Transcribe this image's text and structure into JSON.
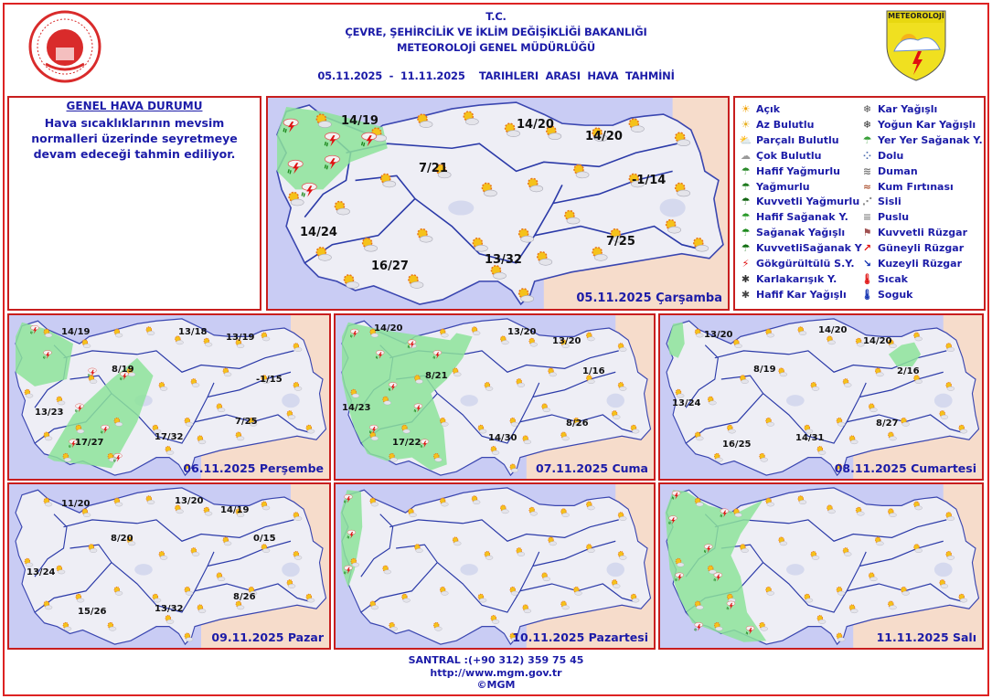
{
  "header": {
    "line1": "T.C.",
    "line2": "ÇEVRE, ŞEHİRCİLİK VE İKLİM DEĞİŞİKLİĞİ BAKANLIĞI",
    "line3": "METEOROLOJİ  GENEL  MÜDÜRLÜĞÜ",
    "period": "05.11.2025  -  11.11.2025    TARIHLERI  ARASI  HAVA  TAHMİNİ",
    "right_logo_text": "METEOROLOJİ"
  },
  "genel": {
    "title": "GENEL HAVA DURUMU",
    "text": "Hava sıcaklıklarının mevsim normalleri üzerinde seyretmeye devam edeceği tahmin ediliyor."
  },
  "legend": [
    {
      "label": "Açık",
      "icon": "sun-icon"
    },
    {
      "label": "Az Bulutlu",
      "icon": "mostly-sunny-icon"
    },
    {
      "label": "Parçalı Bulutlu",
      "icon": "partly-cloudy-icon"
    },
    {
      "label": "Çok Bulutlu",
      "icon": "cloudy-icon"
    },
    {
      "label": "Hafif Yağmurlu",
      "icon": "light-rain-icon"
    },
    {
      "label": "Yağmurlu",
      "icon": "rain-icon"
    },
    {
      "label": "Kuvvetli Yağmurlu",
      "icon": "heavy-rain-icon"
    },
    {
      "label": "Hafif Sağanak Y.",
      "icon": "light-shower-icon"
    },
    {
      "label": "Sağanak Yağışlı",
      "icon": "shower-icon"
    },
    {
      "label": "KuvvetliSağanak Y",
      "icon": "heavy-shower-icon"
    },
    {
      "label": "Gökgürültülü S.Y.",
      "icon": "thunderstorm-icon"
    },
    {
      "label": "Karlakarışık Y.",
      "icon": "sleet-icon"
    },
    {
      "label": "Hafif Kar Yağışlı",
      "icon": "light-snow-icon"
    },
    {
      "label": "Kar Yağışlı",
      "icon": "snow-icon"
    },
    {
      "label": "Yoğun Kar Yağışlı",
      "icon": "heavy-snow-icon"
    },
    {
      "label": "Yer Yer Sağanak Y.",
      "icon": "scattered-shower-icon"
    },
    {
      "label": "Dolu",
      "icon": "hail-icon"
    },
    {
      "label": "Duman",
      "icon": "smoke-icon"
    },
    {
      "label": "Kum Fırtınası",
      "icon": "sandstorm-icon"
    },
    {
      "label": "Sisli",
      "icon": "fog-icon"
    },
    {
      "label": "Puslu",
      "icon": "haze-icon"
    },
    {
      "label": "Kuvvetli Rüzgar",
      "icon": "strong-wind-icon"
    },
    {
      "label": "Güneyli Rüzgar",
      "icon": "south-wind-arrow-icon"
    },
    {
      "label": "Kuzeyli Rüzgar",
      "icon": "north-wind-arrow-icon"
    },
    {
      "label": "Sıcak",
      "icon": "hot-thermometer-icon"
    },
    {
      "label": "Soguk",
      "icon": "cold-thermometer-icon"
    }
  ],
  "maps": [
    {
      "date": "05.11.2025 Çarşamba",
      "temps": [
        "14/19",
        "14/20",
        "14/20",
        "7/21",
        "-1/14",
        "14/24",
        "16/27",
        "13/32",
        "7/25"
      ]
    },
    {
      "date": "06.11.2025 Perşembe",
      "temps": [
        "14/19",
        "13/18",
        "13/19",
        "8/19",
        "-1/15",
        "13/23",
        "7/25",
        "17/32",
        "17/27"
      ]
    },
    {
      "date": "07.11.2025 Cuma",
      "temps": [
        "14/20",
        "13/20",
        "13/20",
        "8/21",
        "1/16",
        "14/23",
        "8/26",
        "14/30",
        "17/22"
      ]
    },
    {
      "date": "08.11.2025 Cumartesi",
      "temps": [
        "13/20",
        "14/20",
        "14/20",
        "8/19",
        "2/16",
        "13/24",
        "8/27",
        "14/31",
        "16/25"
      ]
    },
    {
      "date": "09.11.2025 Pazar",
      "temps": [
        "11/20",
        "13/20",
        "14/19",
        "8/20",
        "0/15",
        "13/24",
        "8/26",
        "13/32",
        "15/26"
      ]
    },
    {
      "date": "10.11.2025 Pazartesi",
      "temps": []
    },
    {
      "date": "11.11.2025 Salı",
      "temps": []
    }
  ],
  "footer": {
    "phone": "SANTRAL :(+90 312) 359 75 45",
    "url": "http://www.mgm.gov.tr",
    "copyright": "©MGM"
  },
  "colors": {
    "text": "#1c1ca8",
    "border": "#c81e1e",
    "sea": "#c9ccf4",
    "land": "#eeeef5",
    "neighbor": "#f6dccb",
    "rain_area": "#8de39a",
    "region_line": "#2b3aa8"
  }
}
